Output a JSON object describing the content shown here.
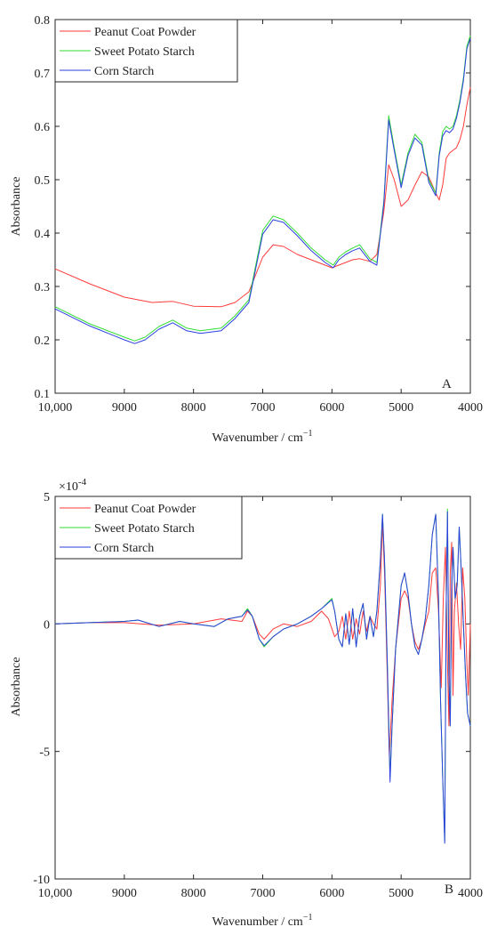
{
  "chart_data": [
    {
      "type": "line",
      "panel_label": "A",
      "xlabel": "Wavenumber / cm",
      "xlabel_sup": "−1",
      "ylabel": "Absorbance",
      "xlim": [
        10000,
        4000
      ],
      "x_reversed": true,
      "ylim": [
        0.1,
        0.8
      ],
      "xticks": [
        10000,
        9000,
        8000,
        7000,
        6000,
        5000,
        4000
      ],
      "xtick_labels": [
        "10,000",
        "9000",
        "8000",
        "7000",
        "6000",
        "5000",
        "4000"
      ],
      "yticks": [
        0.1,
        0.2,
        0.3,
        0.4,
        0.5,
        0.6,
        0.7,
        0.8
      ],
      "ytick_labels": [
        "0.1",
        "0.2",
        "0.3",
        "0.4",
        "0.5",
        "0.6",
        "0.7",
        "0.8"
      ],
      "grid": false,
      "legend": "top-left",
      "series": [
        {
          "name": "Peanut Coat Powder",
          "color": "#ff3b3b",
          "x": [
            10000,
            9500,
            9000,
            8600,
            8300,
            8000,
            7600,
            7400,
            7200,
            7000,
            6850,
            6700,
            6500,
            6200,
            6000,
            5900,
            5800,
            5700,
            5600,
            5450,
            5350,
            5250,
            5180,
            5100,
            5000,
            4900,
            4800,
            4700,
            4600,
            4500,
            4450,
            4400,
            4350,
            4300,
            4250,
            4200,
            4150,
            4100,
            4050,
            4000
          ],
          "y": [
            0.333,
            0.305,
            0.28,
            0.27,
            0.272,
            0.263,
            0.262,
            0.27,
            0.29,
            0.355,
            0.378,
            0.375,
            0.36,
            0.345,
            0.335,
            0.34,
            0.345,
            0.35,
            0.352,
            0.347,
            0.36,
            0.44,
            0.528,
            0.5,
            0.45,
            0.462,
            0.49,
            0.515,
            0.505,
            0.475,
            0.462,
            0.49,
            0.54,
            0.55,
            0.555,
            0.56,
            0.575,
            0.6,
            0.64,
            0.673
          ]
        },
        {
          "name": "Sweet Potato Starch",
          "color": "#33dd33",
          "x": [
            10000,
            9500,
            9000,
            8850,
            8700,
            8500,
            8300,
            8100,
            7900,
            7600,
            7400,
            7200,
            7000,
            6850,
            6700,
            6500,
            6300,
            6100,
            5980,
            5900,
            5800,
            5700,
            5600,
            5450,
            5350,
            5250,
            5180,
            5100,
            5000,
            4900,
            4800,
            4700,
            4600,
            4500,
            4450,
            4400,
            4350,
            4300,
            4250,
            4200,
            4150,
            4100,
            4050,
            4000
          ],
          "y": [
            0.262,
            0.23,
            0.205,
            0.198,
            0.205,
            0.225,
            0.237,
            0.222,
            0.217,
            0.222,
            0.245,
            0.275,
            0.405,
            0.432,
            0.425,
            0.4,
            0.372,
            0.35,
            0.34,
            0.355,
            0.365,
            0.372,
            0.378,
            0.352,
            0.345,
            0.46,
            0.62,
            0.56,
            0.49,
            0.55,
            0.585,
            0.57,
            0.5,
            0.475,
            0.55,
            0.59,
            0.6,
            0.595,
            0.6,
            0.62,
            0.65,
            0.69,
            0.75,
            0.77
          ]
        },
        {
          "name": "Corn Starch",
          "color": "#2b3fe0",
          "x": [
            10000,
            9500,
            9000,
            8850,
            8700,
            8500,
            8300,
            8100,
            7900,
            7600,
            7400,
            7200,
            7000,
            6850,
            6700,
            6500,
            6300,
            6100,
            5980,
            5900,
            5800,
            5700,
            5600,
            5450,
            5350,
            5250,
            5180,
            5100,
            5000,
            4900,
            4800,
            4700,
            4600,
            4500,
            4450,
            4400,
            4350,
            4300,
            4250,
            4200,
            4150,
            4100,
            4050,
            4000
          ],
          "y": [
            0.258,
            0.226,
            0.2,
            0.193,
            0.2,
            0.22,
            0.232,
            0.217,
            0.212,
            0.217,
            0.24,
            0.27,
            0.398,
            0.425,
            0.42,
            0.395,
            0.367,
            0.345,
            0.335,
            0.35,
            0.36,
            0.367,
            0.372,
            0.347,
            0.34,
            0.455,
            0.612,
            0.555,
            0.485,
            0.545,
            0.578,
            0.565,
            0.495,
            0.47,
            0.545,
            0.582,
            0.592,
            0.588,
            0.595,
            0.615,
            0.645,
            0.685,
            0.745,
            0.765
          ]
        }
      ]
    },
    {
      "type": "line",
      "panel_label": "B",
      "xlabel": "Wavenumber / cm",
      "xlabel_sup": "−1",
      "ylabel": "Absorbance",
      "scale_base": "×10",
      "scale_exp": "-4",
      "xlim": [
        10000,
        4000
      ],
      "x_reversed": true,
      "ylim": [
        -10,
        5
      ],
      "xticks": [
        10000,
        9000,
        8000,
        7000,
        6000,
        5000,
        4000
      ],
      "xtick_labels": [
        "10,000",
        "9000",
        "8000",
        "7000",
        "6000",
        "5000",
        "4000"
      ],
      "yticks": [
        -10,
        -5,
        0,
        5
      ],
      "ytick_labels": [
        "-10",
        "-5",
        "0",
        "5"
      ],
      "grid": false,
      "legend": "top-left",
      "series": [
        {
          "name": "Peanut Coat Powder",
          "color": "#ff3b3b",
          "x": [
            10000,
            9500,
            9000,
            8500,
            8000,
            7600,
            7300,
            7220,
            7150,
            7050,
            6980,
            6850,
            6700,
            6500,
            6300,
            6150,
            6050,
            5960,
            5900,
            5850,
            5800,
            5750,
            5700,
            5650,
            5600,
            5550,
            5500,
            5450,
            5400,
            5350,
            5300,
            5270,
            5240,
            5200,
            5170,
            5130,
            5080,
            5000,
            4950,
            4900,
            4850,
            4800,
            4750,
            4700,
            4650,
            4600,
            4550,
            4500,
            4460,
            4420,
            4390,
            4360,
            4330,
            4310,
            4290,
            4270,
            4250,
            4230,
            4200,
            4170,
            4140,
            4110,
            4080,
            4050,
            4030,
            4000
          ],
          "y": [
            0.0,
            0.05,
            0.05,
            -0.05,
            0.0,
            0.2,
            0.1,
            0.5,
            0.3,
            -0.4,
            -0.6,
            -0.2,
            0.0,
            -0.1,
            0.1,
            0.5,
            0.2,
            -0.5,
            -0.3,
            0.3,
            -0.6,
            0.5,
            -0.6,
            0.2,
            -0.4,
            0.5,
            -0.3,
            0.3,
            0.0,
            -0.2,
            1.5,
            4.0,
            2.0,
            -2.0,
            -5.2,
            -3.0,
            -1.0,
            1.0,
            1.3,
            1.0,
            0.0,
            -0.7,
            -1.0,
            -0.6,
            0.0,
            0.5,
            2.0,
            2.2,
            0.5,
            -2.5,
            1.0,
            3.0,
            -1.5,
            -4.0,
            2.0,
            3.2,
            -2.8,
            0.5,
            1.6,
            0.0,
            -1.0,
            2.2,
            1.0,
            -1.5,
            -2.8,
            0.0
          ]
        },
        {
          "name": "Sweet Potato Starch",
          "color": "#33dd33",
          "x": [
            10000,
            9500,
            9000,
            8800,
            8500,
            8200,
            8000,
            7700,
            7500,
            7300,
            7220,
            7150,
            7050,
            6980,
            6850,
            6700,
            6500,
            6300,
            6150,
            6000,
            5960,
            5900,
            5850,
            5800,
            5750,
            5700,
            5650,
            5600,
            5550,
            5500,
            5450,
            5400,
            5350,
            5300,
            5270,
            5240,
            5200,
            5160,
            5130,
            5080,
            5000,
            4950,
            4900,
            4850,
            4800,
            4750,
            4700,
            4650,
            4600,
            4550,
            4500,
            4460,
            4430,
            4400,
            4370,
            4350,
            4330,
            4310,
            4290,
            4270,
            4250,
            4220,
            4190,
            4160,
            4130,
            4100,
            4070,
            4040,
            4000
          ],
          "y": [
            0.0,
            0.05,
            0.1,
            0.15,
            -0.1,
            0.1,
            0.0,
            -0.1,
            0.2,
            0.3,
            0.6,
            0.3,
            -0.6,
            -0.9,
            -0.5,
            -0.2,
            0.0,
            0.3,
            0.6,
            1.0,
            0.5,
            -0.6,
            -0.9,
            0.4,
            -0.8,
            0.6,
            -0.9,
            0.3,
            0.8,
            -0.6,
            0.3,
            -0.5,
            0.5,
            2.5,
            4.3,
            2.5,
            -1.5,
            -6.0,
            -4.0,
            -1.0,
            1.5,
            2.0,
            1.2,
            0.0,
            -0.9,
            -1.2,
            -0.6,
            0.2,
            1.5,
            3.5,
            4.3,
            1.0,
            -3.0,
            -6.0,
            -8.5,
            0.5,
            4.5,
            -2.0,
            -4.0,
            1.5,
            3.0,
            1.0,
            1.5,
            3.8,
            2.0,
            0.0,
            -2.0,
            -3.5,
            -4.0
          ]
        },
        {
          "name": "Corn Starch",
          "color": "#2b3fe0",
          "x": [
            10000,
            9500,
            9000,
            8800,
            8500,
            8200,
            8000,
            7700,
            7500,
            7300,
            7220,
            7150,
            7050,
            6980,
            6850,
            6700,
            6500,
            6300,
            6150,
            6000,
            5960,
            5900,
            5850,
            5800,
            5750,
            5700,
            5650,
            5600,
            5550,
            5500,
            5450,
            5400,
            5350,
            5300,
            5270,
            5240,
            5200,
            5160,
            5130,
            5080,
            5000,
            4950,
            4900,
            4850,
            4800,
            4750,
            4700,
            4650,
            4600,
            4550,
            4500,
            4460,
            4430,
            4400,
            4370,
            4350,
            4330,
            4310,
            4290,
            4270,
            4250,
            4220,
            4190,
            4160,
            4130,
            4100,
            4070,
            4040,
            4000
          ],
          "y": [
            0.0,
            0.05,
            0.1,
            0.15,
            -0.1,
            0.1,
            0.0,
            -0.1,
            0.2,
            0.3,
            0.55,
            0.3,
            -0.6,
            -0.85,
            -0.5,
            -0.2,
            0.0,
            0.3,
            0.6,
            0.95,
            0.5,
            -0.6,
            -0.9,
            0.4,
            -0.8,
            0.6,
            -0.9,
            0.3,
            0.8,
            -0.6,
            0.3,
            -0.5,
            0.5,
            2.5,
            4.3,
            2.5,
            -1.5,
            -6.2,
            -4.0,
            -1.0,
            1.5,
            2.0,
            1.2,
            0.0,
            -0.9,
            -1.2,
            -0.6,
            0.2,
            1.5,
            3.5,
            4.3,
            1.0,
            -3.0,
            -6.0,
            -8.6,
            0.5,
            4.4,
            -2.0,
            -4.0,
            1.5,
            3.0,
            1.0,
            1.5,
            3.8,
            2.0,
            0.0,
            -2.0,
            -3.5,
            -4.0
          ]
        }
      ]
    }
  ]
}
